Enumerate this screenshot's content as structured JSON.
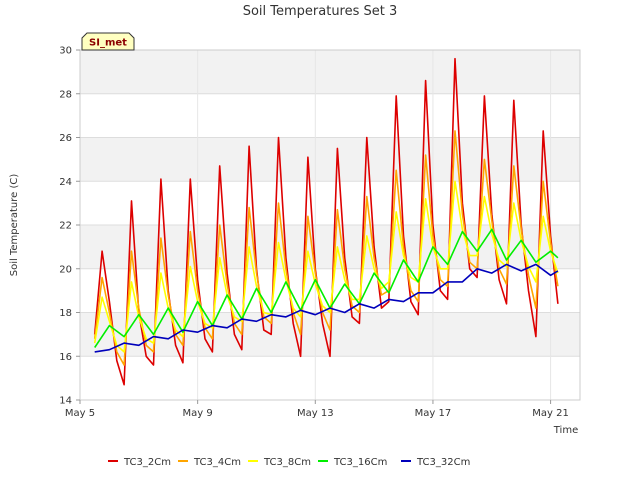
{
  "chart_data": {
    "type": "line",
    "title": "Soil Temperatures Set 3",
    "xlabel": "Time",
    "ylabel": "Soil Temperature (C)",
    "badge": "SI_met",
    "ylim": [
      14,
      30
    ],
    "xlim": [
      "2024-05-05",
      "2024-05-22"
    ],
    "yticks": [
      14,
      16,
      18,
      20,
      22,
      24,
      26,
      28,
      30
    ],
    "xticks": [
      {
        "label": "May 5",
        "date": "2024-05-05"
      },
      {
        "label": "May 9",
        "date": "2024-05-09"
      },
      {
        "label": "May 13",
        "date": "2024-05-13"
      },
      {
        "label": "May 17",
        "date": "2024-05-17"
      },
      {
        "label": "May 21",
        "date": "2024-05-21"
      }
    ],
    "grid": true,
    "legend_position": "bottom",
    "series": [
      {
        "name": "TC3_2Cm",
        "color": "#dd0000",
        "x": [
          "2024-05-05 12:00",
          "2024-05-05 18:00",
          "2024-05-06 00:00",
          "2024-05-06 06:00",
          "2024-05-06 12:00",
          "2024-05-06 18:00",
          "2024-05-07 00:00",
          "2024-05-07 06:00",
          "2024-05-07 12:00",
          "2024-05-07 18:00",
          "2024-05-08 00:00",
          "2024-05-08 06:00",
          "2024-05-08 12:00",
          "2024-05-08 18:00",
          "2024-05-09 00:00",
          "2024-05-09 06:00",
          "2024-05-09 12:00",
          "2024-05-09 18:00",
          "2024-05-10 00:00",
          "2024-05-10 06:00",
          "2024-05-10 12:00",
          "2024-05-10 18:00",
          "2024-05-11 00:00",
          "2024-05-11 06:00",
          "2024-05-11 12:00",
          "2024-05-11 18:00",
          "2024-05-12 00:00",
          "2024-05-12 06:00",
          "2024-05-12 12:00",
          "2024-05-12 18:00",
          "2024-05-13 00:00",
          "2024-05-13 06:00",
          "2024-05-13 12:00",
          "2024-05-13 18:00",
          "2024-05-14 00:00",
          "2024-05-14 06:00",
          "2024-05-14 12:00",
          "2024-05-14 18:00",
          "2024-05-15 00:00",
          "2024-05-15 06:00",
          "2024-05-15 12:00",
          "2024-05-15 18:00",
          "2024-05-16 00:00",
          "2024-05-16 06:00",
          "2024-05-16 12:00",
          "2024-05-16 18:00",
          "2024-05-17 00:00",
          "2024-05-17 06:00",
          "2024-05-17 12:00",
          "2024-05-17 18:00",
          "2024-05-18 00:00",
          "2024-05-18 06:00",
          "2024-05-18 12:00",
          "2024-05-18 18:00",
          "2024-05-19 00:00",
          "2024-05-19 06:00",
          "2024-05-19 12:00",
          "2024-05-19 18:00",
          "2024-05-20 00:00",
          "2024-05-20 06:00",
          "2024-05-20 12:00",
          "2024-05-20 18:00",
          "2024-05-21 00:00",
          "2024-05-21 06:00"
        ],
        "values": [
          17.0,
          20.8,
          18.5,
          15.8,
          14.7,
          23.1,
          18.0,
          16.0,
          15.6,
          24.1,
          19.0,
          16.5,
          15.7,
          24.1,
          19.5,
          16.8,
          16.2,
          24.7,
          19.8,
          17.0,
          16.3,
          25.6,
          20.0,
          17.2,
          17.0,
          26.0,
          20.5,
          17.5,
          16.0,
          25.1,
          20.0,
          17.5,
          16.0,
          25.5,
          20.5,
          17.8,
          17.5,
          26.0,
          21.0,
          18.2,
          18.5,
          27.9,
          21.5,
          18.5,
          17.9,
          28.6,
          22.0,
          19.0,
          18.6,
          29.6,
          23.0,
          20.0,
          19.6,
          27.9,
          22.5,
          19.5,
          18.4,
          27.7,
          22.0,
          19.0,
          16.9,
          26.3,
          21.5,
          18.4
        ]
      },
      {
        "name": "TC3_4Cm",
        "color": "#ffa500",
        "x": [
          "2024-05-05 12:00",
          "2024-05-05 18:00",
          "2024-05-06 00:00",
          "2024-05-06 06:00",
          "2024-05-06 12:00",
          "2024-05-06 18:00",
          "2024-05-07 00:00",
          "2024-05-07 06:00",
          "2024-05-07 12:00",
          "2024-05-07 18:00",
          "2024-05-08 00:00",
          "2024-05-08 06:00",
          "2024-05-08 12:00",
          "2024-05-08 18:00",
          "2024-05-09 00:00",
          "2024-05-09 06:00",
          "2024-05-09 12:00",
          "2024-05-09 18:00",
          "2024-05-10 00:00",
          "2024-05-10 06:00",
          "2024-05-10 12:00",
          "2024-05-10 18:00",
          "2024-05-11 00:00",
          "2024-05-11 06:00",
          "2024-05-11 12:00",
          "2024-05-11 18:00",
          "2024-05-12 00:00",
          "2024-05-12 06:00",
          "2024-05-12 12:00",
          "2024-05-12 18:00",
          "2024-05-13 00:00",
          "2024-05-13 06:00",
          "2024-05-13 12:00",
          "2024-05-13 18:00",
          "2024-05-14 00:00",
          "2024-05-14 06:00",
          "2024-05-14 12:00",
          "2024-05-14 18:00",
          "2024-05-15 00:00",
          "2024-05-15 06:00",
          "2024-05-15 12:00",
          "2024-05-15 18:00",
          "2024-05-16 00:00",
          "2024-05-16 06:00",
          "2024-05-16 12:00",
          "2024-05-16 18:00",
          "2024-05-17 00:00",
          "2024-05-17 06:00",
          "2024-05-17 12:00",
          "2024-05-17 18:00",
          "2024-05-18 00:00",
          "2024-05-18 06:00",
          "2024-05-18 12:00",
          "2024-05-18 18:00",
          "2024-05-19 00:00",
          "2024-05-19 06:00",
          "2024-05-19 12:00",
          "2024-05-19 18:00",
          "2024-05-20 00:00",
          "2024-05-20 06:00",
          "2024-05-20 12:00",
          "2024-05-20 18:00",
          "2024-05-21 00:00",
          "2024-05-21 06:00"
        ],
        "values": [
          16.8,
          19.6,
          18.0,
          16.2,
          15.6,
          20.8,
          18.2,
          16.5,
          16.2,
          21.4,
          18.8,
          17.0,
          16.5,
          21.7,
          19.0,
          17.3,
          16.8,
          22.0,
          19.3,
          17.5,
          17.0,
          22.8,
          19.8,
          17.8,
          17.5,
          23.0,
          20.0,
          18.0,
          17.0,
          22.4,
          19.8,
          18.0,
          17.2,
          22.7,
          20.0,
          18.3,
          18.0,
          23.3,
          20.5,
          18.8,
          19.0,
          24.5,
          21.0,
          19.0,
          18.5,
          25.2,
          21.5,
          19.5,
          19.2,
          26.3,
          22.5,
          20.3,
          20.0,
          25.0,
          22.2,
          20.0,
          19.3,
          24.7,
          21.8,
          19.7,
          18.2,
          24.0,
          21.2,
          19.2
        ]
      },
      {
        "name": "TC3_8Cm",
        "color": "#ffff00",
        "x": [
          "2024-05-05 12:00",
          "2024-05-05 18:00",
          "2024-05-06 00:00",
          "2024-05-06 06:00",
          "2024-05-06 12:00",
          "2024-05-06 18:00",
          "2024-05-07 00:00",
          "2024-05-07 06:00",
          "2024-05-07 12:00",
          "2024-05-07 18:00",
          "2024-05-08 00:00",
          "2024-05-08 06:00",
          "2024-05-08 12:00",
          "2024-05-08 18:00",
          "2024-05-09 00:00",
          "2024-05-09 06:00",
          "2024-05-09 12:00",
          "2024-05-09 18:00",
          "2024-05-10 00:00",
          "2024-05-10 06:00",
          "2024-05-10 12:00",
          "2024-05-10 18:00",
          "2024-05-11 00:00",
          "2024-05-11 06:00",
          "2024-05-11 12:00",
          "2024-05-11 18:00",
          "2024-05-12 00:00",
          "2024-05-12 06:00",
          "2024-05-12 12:00",
          "2024-05-12 18:00",
          "2024-05-13 00:00",
          "2024-05-13 06:00",
          "2024-05-13 12:00",
          "2024-05-13 18:00",
          "2024-05-14 00:00",
          "2024-05-14 06:00",
          "2024-05-14 12:00",
          "2024-05-14 18:00",
          "2024-05-15 00:00",
          "2024-05-15 06:00",
          "2024-05-15 12:00",
          "2024-05-15 18:00",
          "2024-05-16 00:00",
          "2024-05-16 06:00",
          "2024-05-16 12:00",
          "2024-05-16 18:00",
          "2024-05-17 00:00",
          "2024-05-17 06:00",
          "2024-05-17 12:00",
          "2024-05-17 18:00",
          "2024-05-18 00:00",
          "2024-05-18 06:00",
          "2024-05-18 12:00",
          "2024-05-18 18:00",
          "2024-05-19 00:00",
          "2024-05-19 06:00",
          "2024-05-19 12:00",
          "2024-05-19 18:00",
          "2024-05-20 00:00",
          "2024-05-20 06:00",
          "2024-05-20 12:00",
          "2024-05-20 18:00",
          "2024-05-21 00:00",
          "2024-05-21 06:00"
        ],
        "values": [
          16.6,
          18.7,
          17.6,
          16.5,
          16.2,
          19.4,
          17.8,
          16.8,
          16.6,
          19.8,
          18.2,
          17.2,
          16.9,
          20.1,
          18.5,
          17.5,
          17.3,
          20.5,
          18.8,
          17.8,
          17.6,
          21.0,
          19.2,
          18.0,
          17.9,
          21.2,
          19.5,
          18.2,
          17.8,
          20.8,
          19.3,
          18.3,
          18.0,
          21.0,
          19.5,
          18.6,
          18.6,
          21.5,
          20.0,
          19.1,
          19.4,
          22.6,
          20.6,
          19.6,
          19.4,
          23.2,
          21.0,
          20.0,
          20.0,
          24.0,
          21.8,
          20.6,
          20.6,
          23.3,
          21.6,
          20.4,
          20.1,
          23.0,
          21.3,
          20.1,
          19.4,
          22.4,
          20.8,
          19.8
        ]
      },
      {
        "name": "TC3_16Cm",
        "color": "#00ee00",
        "x": [
          "2024-05-05 12:00",
          "2024-05-06 00:00",
          "2024-05-06 12:00",
          "2024-05-07 00:00",
          "2024-05-07 12:00",
          "2024-05-08 00:00",
          "2024-05-08 12:00",
          "2024-05-09 00:00",
          "2024-05-09 12:00",
          "2024-05-10 00:00",
          "2024-05-10 12:00",
          "2024-05-11 00:00",
          "2024-05-11 12:00",
          "2024-05-12 00:00",
          "2024-05-12 12:00",
          "2024-05-13 00:00",
          "2024-05-13 12:00",
          "2024-05-14 00:00",
          "2024-05-14 12:00",
          "2024-05-15 00:00",
          "2024-05-15 12:00",
          "2024-05-16 00:00",
          "2024-05-16 12:00",
          "2024-05-17 00:00",
          "2024-05-17 12:00",
          "2024-05-18 00:00",
          "2024-05-18 12:00",
          "2024-05-19 00:00",
          "2024-05-19 12:00",
          "2024-05-20 00:00",
          "2024-05-20 12:00",
          "2024-05-21 00:00",
          "2024-05-21 06:00"
        ],
        "values": [
          16.4,
          17.4,
          16.9,
          17.9,
          17.0,
          18.2,
          17.1,
          18.5,
          17.4,
          18.8,
          17.7,
          19.1,
          18.0,
          19.4,
          18.1,
          19.5,
          18.2,
          19.3,
          18.4,
          19.8,
          18.9,
          20.4,
          19.4,
          21.0,
          20.2,
          21.7,
          20.8,
          21.8,
          20.4,
          21.3,
          20.3,
          20.8,
          20.5
        ]
      },
      {
        "name": "TC3_32Cm",
        "color": "#0000bb",
        "x": [
          "2024-05-05 12:00",
          "2024-05-06 00:00",
          "2024-05-06 12:00",
          "2024-05-07 00:00",
          "2024-05-07 12:00",
          "2024-05-08 00:00",
          "2024-05-08 12:00",
          "2024-05-09 00:00",
          "2024-05-09 12:00",
          "2024-05-10 00:00",
          "2024-05-10 12:00",
          "2024-05-11 00:00",
          "2024-05-11 12:00",
          "2024-05-12 00:00",
          "2024-05-12 12:00",
          "2024-05-13 00:00",
          "2024-05-13 12:00",
          "2024-05-14 00:00",
          "2024-05-14 12:00",
          "2024-05-15 00:00",
          "2024-05-15 12:00",
          "2024-05-16 00:00",
          "2024-05-16 12:00",
          "2024-05-17 00:00",
          "2024-05-17 12:00",
          "2024-05-18 00:00",
          "2024-05-18 12:00",
          "2024-05-19 00:00",
          "2024-05-19 12:00",
          "2024-05-20 00:00",
          "2024-05-20 12:00",
          "2024-05-21 00:00",
          "2024-05-21 06:00"
        ],
        "values": [
          16.2,
          16.3,
          16.6,
          16.5,
          16.9,
          16.8,
          17.2,
          17.1,
          17.4,
          17.3,
          17.7,
          17.6,
          17.9,
          17.8,
          18.1,
          17.9,
          18.2,
          18.0,
          18.4,
          18.2,
          18.6,
          18.5,
          18.9,
          18.9,
          19.4,
          19.4,
          20.0,
          19.8,
          20.2,
          19.9,
          20.2,
          19.7,
          19.9
        ]
      }
    ]
  }
}
